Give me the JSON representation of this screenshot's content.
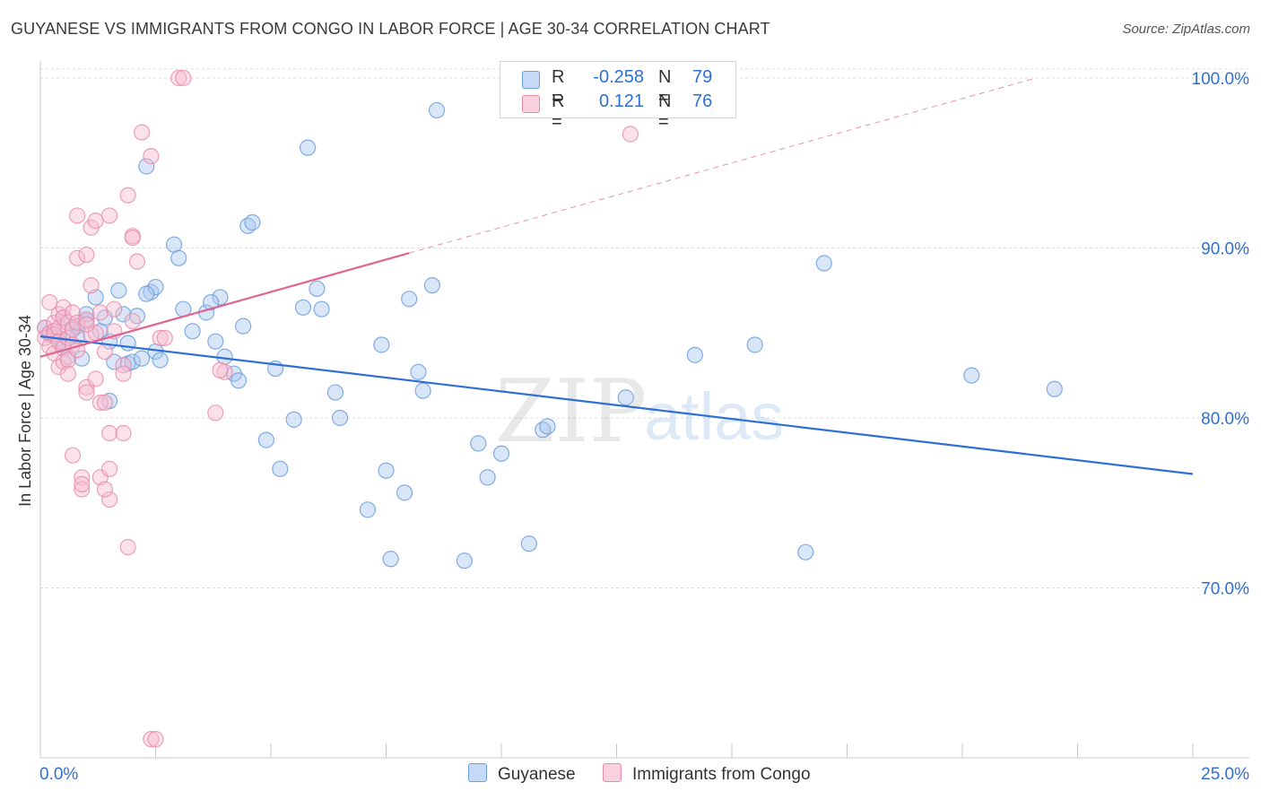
{
  "title": "GUYANESE VS IMMIGRANTS FROM CONGO IN LABOR FORCE | AGE 30-34 CORRELATION CHART",
  "source": "Source: ZipAtlas.com",
  "watermark": {
    "part1": "ZIP",
    "part2": "atlas"
  },
  "legend": {
    "rows": [
      {
        "r_label": "R =",
        "r_value": "-0.258",
        "n_label": "N =",
        "n_value": "79"
      },
      {
        "r_label": "R =",
        "r_value": "0.121",
        "n_label": "N =",
        "n_value": "76"
      }
    ]
  },
  "bottom_legend": {
    "guyanese": "Guyanese",
    "congo": "Immigrants from Congo"
  },
  "colors": {
    "blue_fill": "#a9c8f0",
    "blue_stroke": "#6e9fdd",
    "blue_line": "#2e6fd6",
    "pink_fill": "#f6bcd0",
    "pink_stroke": "#e98aaa",
    "pink_line": "#e0628e",
    "tick_label": "#2e6fd6",
    "grid": "#dcdcdc"
  },
  "chart_data": {
    "type": "scatter",
    "xlabel": "",
    "ylabel": "In Labor Force | Age 30-34",
    "xlim": [
      0,
      25
    ],
    "ylim": [
      60,
      101
    ],
    "x_tick_labels": [
      {
        "value": 0,
        "label": "0.0%"
      },
      {
        "value": 25,
        "label": "25.0%"
      }
    ],
    "y_tick_labels": [
      {
        "value": 100,
        "label": "100.0%"
      },
      {
        "value": 90,
        "label": "90.0%"
      },
      {
        "value": 80,
        "label": "80.0%"
      },
      {
        "value": 70,
        "label": "70.0%"
      }
    ],
    "series": [
      {
        "name": "Guyanese",
        "color": "#6e9fdd",
        "trendline": {
          "x": [
            0.0,
            25.0
          ],
          "y": [
            84.8,
            76.7
          ],
          "dashed": false
        },
        "points": [
          [
            0.1,
            85.3
          ],
          [
            0.2,
            84.9
          ],
          [
            0.3,
            85.1
          ],
          [
            0.4,
            84.7
          ],
          [
            0.5,
            85.9
          ],
          [
            0.5,
            84.3
          ],
          [
            0.6,
            83.6
          ],
          [
            0.7,
            85.3
          ],
          [
            0.8,
            85.4
          ],
          [
            0.8,
            84.8
          ],
          [
            0.9,
            83.5
          ],
          [
            1.0,
            85.7
          ],
          [
            1.0,
            86.1
          ],
          [
            1.2,
            87.1
          ],
          [
            1.3,
            85.1
          ],
          [
            1.4,
            85.9
          ],
          [
            1.5,
            84.5
          ],
          [
            1.6,
            83.3
          ],
          [
            1.7,
            87.5
          ],
          [
            1.8,
            86.1
          ],
          [
            1.9,
            83.2
          ],
          [
            2.0,
            83.3
          ],
          [
            2.1,
            86.0
          ],
          [
            2.2,
            83.5
          ],
          [
            2.4,
            87.4
          ],
          [
            2.5,
            87.7
          ],
          [
            2.3,
            87.3
          ],
          [
            2.3,
            94.8
          ],
          [
            2.9,
            90.2
          ],
          [
            3.0,
            89.4
          ],
          [
            2.5,
            83.9
          ],
          [
            2.6,
            83.4
          ],
          [
            3.1,
            86.4
          ],
          [
            3.3,
            85.1
          ],
          [
            3.6,
            86.2
          ],
          [
            3.9,
            87.1
          ],
          [
            3.7,
            86.8
          ],
          [
            3.8,
            84.5
          ],
          [
            4.0,
            83.6
          ],
          [
            4.2,
            82.6
          ],
          [
            4.3,
            82.2
          ],
          [
            4.4,
            85.4
          ],
          [
            4.5,
            91.3
          ],
          [
            4.6,
            91.5
          ],
          [
            4.9,
            78.7
          ],
          [
            5.1,
            82.9
          ],
          [
            5.2,
            77.0
          ],
          [
            5.5,
            79.9
          ],
          [
            5.7,
            86.5
          ],
          [
            5.8,
            95.9
          ],
          [
            6.0,
            87.6
          ],
          [
            6.1,
            86.4
          ],
          [
            6.4,
            81.5
          ],
          [
            6.5,
            80.0
          ],
          [
            7.1,
            74.6
          ],
          [
            7.4,
            84.3
          ],
          [
            7.5,
            76.9
          ],
          [
            7.6,
            71.7
          ],
          [
            7.9,
            75.6
          ],
          [
            8.0,
            87.0
          ],
          [
            8.2,
            82.7
          ],
          [
            8.3,
            81.6
          ],
          [
            8.5,
            87.8
          ],
          [
            8.6,
            98.1
          ],
          [
            9.2,
            71.6
          ],
          [
            9.5,
            78.5
          ],
          [
            9.7,
            76.5
          ],
          [
            10.0,
            77.9
          ],
          [
            10.6,
            72.6
          ],
          [
            10.9,
            79.3
          ],
          [
            11.0,
            79.5
          ],
          [
            12.7,
            81.2
          ],
          [
            1.5,
            81.0
          ],
          [
            1.9,
            84.4
          ],
          [
            14.2,
            83.7
          ],
          [
            15.5,
            84.3
          ],
          [
            17.0,
            89.1
          ],
          [
            16.6,
            72.1
          ],
          [
            20.2,
            82.5
          ],
          [
            22.0,
            81.7
          ]
        ]
      },
      {
        "name": "Immigrants from Congo",
        "color": "#e98aaa",
        "trendline": {
          "x": [
            0.0,
            8.0
          ],
          "y": [
            83.6,
            89.7
          ],
          "dashed": false,
          "extension": {
            "x": [
              8.0,
              21.6
            ],
            "y": [
              89.7,
              100.0
            ],
            "dashed": true
          }
        },
        "points": [
          [
            0.1,
            85.3
          ],
          [
            0.1,
            84.7
          ],
          [
            0.2,
            85.0
          ],
          [
            0.2,
            84.2
          ],
          [
            0.2,
            86.8
          ],
          [
            0.3,
            85.6
          ],
          [
            0.3,
            85.1
          ],
          [
            0.3,
            84.9
          ],
          [
            0.3,
            83.8
          ],
          [
            0.4,
            86.1
          ],
          [
            0.4,
            85.3
          ],
          [
            0.4,
            84.5
          ],
          [
            0.4,
            83.0
          ],
          [
            0.5,
            86.5
          ],
          [
            0.5,
            85.9
          ],
          [
            0.5,
            84.1
          ],
          [
            0.5,
            83.3
          ],
          [
            0.6,
            85.6
          ],
          [
            0.6,
            84.7
          ],
          [
            0.6,
            83.4
          ],
          [
            0.6,
            82.6
          ],
          [
            0.7,
            86.2
          ],
          [
            0.7,
            85.2
          ],
          [
            0.7,
            84.3
          ],
          [
            0.7,
            77.8
          ],
          [
            0.8,
            85.6
          ],
          [
            0.8,
            84.0
          ],
          [
            0.8,
            91.9
          ],
          [
            0.8,
            89.4
          ],
          [
            0.9,
            76.5
          ],
          [
            0.9,
            75.8
          ],
          [
            0.9,
            76.1
          ],
          [
            1.0,
            81.8
          ],
          [
            1.0,
            81.5
          ],
          [
            1.0,
            89.6
          ],
          [
            1.1,
            91.2
          ],
          [
            1.1,
            87.8
          ],
          [
            1.1,
            84.9
          ],
          [
            1.2,
            91.6
          ],
          [
            1.2,
            85.0
          ],
          [
            1.2,
            82.3
          ],
          [
            1.3,
            86.2
          ],
          [
            1.3,
            80.9
          ],
          [
            1.3,
            76.5
          ],
          [
            1.4,
            83.9
          ],
          [
            1.4,
            80.9
          ],
          [
            1.5,
            91.9
          ],
          [
            1.5,
            79.1
          ],
          [
            1.5,
            77.0
          ],
          [
            1.5,
            75.2
          ],
          [
            1.4,
            75.8
          ],
          [
            1.6,
            86.4
          ],
          [
            1.6,
            85.1
          ],
          [
            1.8,
            83.1
          ],
          [
            1.8,
            82.6
          ],
          [
            1.8,
            79.1
          ],
          [
            1.9,
            93.1
          ],
          [
            2.0,
            90.7
          ],
          [
            2.1,
            89.2
          ],
          [
            2.2,
            96.8
          ],
          [
            1.9,
            72.4
          ],
          [
            2.0,
            90.6
          ],
          [
            2.0,
            85.7
          ],
          [
            2.4,
            95.4
          ],
          [
            2.6,
            84.7
          ],
          [
            2.7,
            84.7
          ],
          [
            2.4,
            61.1
          ],
          [
            2.5,
            61.1
          ],
          [
            3.0,
            100.0
          ],
          [
            3.1,
            100.0
          ],
          [
            3.8,
            80.3
          ],
          [
            4.0,
            82.7
          ],
          [
            3.9,
            82.8
          ],
          [
            1.0,
            85.8
          ],
          [
            1.0,
            85.5
          ],
          [
            12.8,
            96.7
          ]
        ]
      }
    ]
  }
}
